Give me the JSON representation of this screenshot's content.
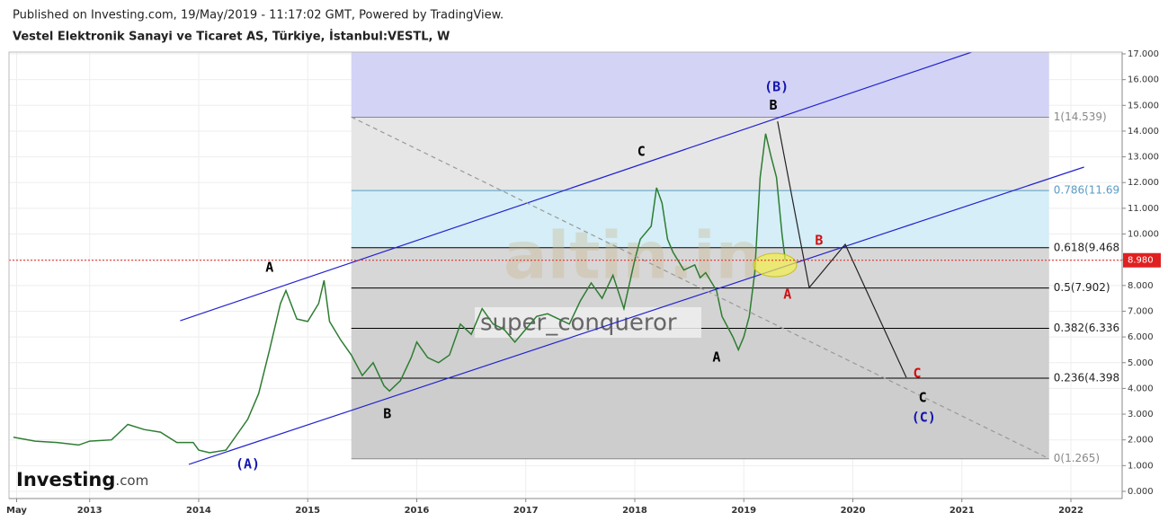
{
  "chart_data": {
    "type": "line",
    "published": "Published on Investing.com, 19/May/2019 - 11:17:02 GMT, Powered by TradingView.",
    "title": "Vestel Elektronik Sanayi ve Ticaret AS, Türkiye, İstanbul:VESTL, W",
    "watermark": "altin.in",
    "author": "super_conqueror",
    "logo": "Investing",
    "logo_suffix": ".com",
    "xlim": [
      2012.26,
      2022.47
    ],
    "ylim": [
      -0.28,
      17.07
    ],
    "xticks": [
      {
        "value": 2012.33,
        "label": "May"
      },
      2013,
      2014,
      2015,
      2016,
      2017,
      2018,
      2019,
      2020,
      2021,
      2022
    ],
    "yticks": [
      {
        "value": 0,
        "label": "0.000"
      },
      {
        "value": 1,
        "label": "1.000"
      },
      {
        "value": 2,
        "label": "2.000"
      },
      {
        "value": 3,
        "label": "3.000"
      },
      {
        "value": 4,
        "label": "4.000"
      },
      {
        "value": 5,
        "label": "5.000"
      },
      {
        "value": 6,
        "label": "6.000"
      },
      {
        "value": 7,
        "label": "7.000"
      },
      {
        "value": 8,
        "label": "8.000"
      },
      {
        "value": 9,
        "label": "9.000"
      },
      {
        "value": 10,
        "label": "10.000"
      },
      {
        "value": 11,
        "label": "11.000"
      },
      {
        "value": 12,
        "label": "12.000"
      },
      {
        "value": 13,
        "label": "13.000"
      },
      {
        "value": 14,
        "label": "14.000"
      },
      {
        "value": 15,
        "label": "15.000"
      },
      {
        "value": 16,
        "label": "16.000"
      },
      {
        "value": 17,
        "label": "17.000"
      }
    ],
    "grid": true,
    "x": [
      2012.3,
      2012.5,
      2012.7,
      2012.9,
      2013.0,
      2013.2,
      2013.35,
      2013.5,
      2013.65,
      2013.8,
      2013.95,
      2014.0,
      2014.1,
      2014.25,
      2014.35,
      2014.45,
      2014.55,
      2014.65,
      2014.75,
      2014.8,
      2014.9,
      2015.0,
      2015.1,
      2015.15,
      2015.2,
      2015.3,
      2015.4,
      2015.5,
      2015.6,
      2015.7,
      2015.75,
      2015.85,
      2015.95,
      2016.0,
      2016.1,
      2016.2,
      2016.3,
      2016.4,
      2016.5,
      2016.6,
      2016.7,
      2016.8,
      2016.9,
      2017.0,
      2017.1,
      2017.2,
      2017.3,
      2017.4,
      2017.5,
      2017.6,
      2017.7,
      2017.8,
      2017.9,
      2018.0,
      2018.05,
      2018.15,
      2018.2,
      2018.25,
      2018.3,
      2018.35,
      2018.45,
      2018.55,
      2018.6,
      2018.65,
      2018.75,
      2018.8,
      2018.9,
      2018.95,
      2019.0,
      2019.05,
      2019.1,
      2019.15,
      2019.2,
      2019.25,
      2019.3,
      2019.35,
      2019.38
    ],
    "series": [
      {
        "color": "#2e7d32",
        "values": [
          2.1,
          1.95,
          1.9,
          1.8,
          1.95,
          2.0,
          2.6,
          2.4,
          2.3,
          1.9,
          1.9,
          1.6,
          1.5,
          1.6,
          2.2,
          2.8,
          3.8,
          5.5,
          7.3,
          7.8,
          6.7,
          6.6,
          7.3,
          8.2,
          6.6,
          5.9,
          5.3,
          4.5,
          5.0,
          4.1,
          3.9,
          4.3,
          5.2,
          5.8,
          5.2,
          5.0,
          5.3,
          6.5,
          6.1,
          7.1,
          6.5,
          6.3,
          5.8,
          6.3,
          6.8,
          6.9,
          6.7,
          6.5,
          7.4,
          8.1,
          7.5,
          8.4,
          7.1,
          9.0,
          9.8,
          10.3,
          11.8,
          11.2,
          9.8,
          9.3,
          8.6,
          8.8,
          8.3,
          8.5,
          7.8,
          6.8,
          6.0,
          5.5,
          6.0,
          6.8,
          8.5,
          12.2,
          13.9,
          13.0,
          12.2,
          10.0,
          8.98
        ]
      }
    ],
    "last_price": {
      "value": 8.98,
      "label": "8.980"
    },
    "fib_x": [
      2015.4,
      2021.8
    ],
    "fib_levels": [
      {
        "value": 14.539,
        "label": "1(14.539)",
        "color": "#888888",
        "zone_color": "#d3d3f5"
      },
      {
        "value": 11.69,
        "label": "0.786(11.69",
        "color": "#5b9bc4",
        "zone_color": "#e6e6e6"
      },
      {
        "value": 9.468,
        "label": "0.618(9.468",
        "color": "#000000",
        "zone_color": "#d5eef7"
      },
      {
        "value": 7.902,
        "label": "0.5(7.902)",
        "color": "#000000",
        "zone_color": "#d7d7d7"
      },
      {
        "value": 6.336,
        "label": "0.382(6.336",
        "color": "#000000",
        "zone_color": "#d3d3d3"
      },
      {
        "value": 4.398,
        "label": "0.236(4.398",
        "color": "#000000",
        "zone_color": "#d0d0d0"
      },
      {
        "value": 1.265,
        "label": "0(1.265)",
        "color": "#888888",
        "zone_color": "#cdcdcd"
      }
    ],
    "lines": [
      {
        "color": "#2323d0",
        "dash": false,
        "points": [
          [
            2013.83,
            6.63
          ],
          [
            2021.09,
            17.07
          ]
        ]
      },
      {
        "color": "#2323d0",
        "dash": false,
        "points": [
          [
            2013.91,
            1.05
          ],
          [
            2022.12,
            12.6
          ]
        ]
      },
      {
        "color": "#999999",
        "dash": true,
        "points": [
          [
            2015.4,
            14.55
          ],
          [
            2021.79,
            1.29
          ]
        ]
      },
      {
        "color": "#222222",
        "dash": false,
        "points": [
          [
            2019.31,
            14.38
          ],
          [
            2019.6,
            7.92
          ],
          [
            2019.93,
            9.6
          ],
          [
            2020.49,
            4.43
          ]
        ]
      }
    ],
    "annotations": [
      {
        "text": "A",
        "x": 2014.65,
        "y": 8.7,
        "color": "#000000"
      },
      {
        "text": "(A)",
        "x": 2014.45,
        "y": 1.05,
        "color": "#1515b0"
      },
      {
        "text": "B",
        "x": 2015.73,
        "y": 3.0,
        "color": "#000000"
      },
      {
        "text": "C",
        "x": 2018.06,
        "y": 13.2,
        "color": "#000000"
      },
      {
        "text": "A",
        "x": 2018.75,
        "y": 5.2,
        "color": "#000000"
      },
      {
        "text": "(B)",
        "x": 2019.3,
        "y": 15.7,
        "color": "#1515b0"
      },
      {
        "text": "B",
        "x": 2019.27,
        "y": 15.0,
        "color": "#000000"
      },
      {
        "text": "B",
        "x": 2019.69,
        "y": 9.74,
        "color": "#d01010"
      },
      {
        "text": "A",
        "x": 2019.4,
        "y": 7.64,
        "color": "#d01010"
      },
      {
        "text": "C",
        "x": 2020.59,
        "y": 4.57,
        "color": "#d01010"
      },
      {
        "text": "C",
        "x": 2020.64,
        "y": 3.63,
        "color": "#000000"
      },
      {
        "text": "(C)",
        "x": 2020.65,
        "y": 2.86,
        "color": "#1515b0"
      }
    ]
  }
}
